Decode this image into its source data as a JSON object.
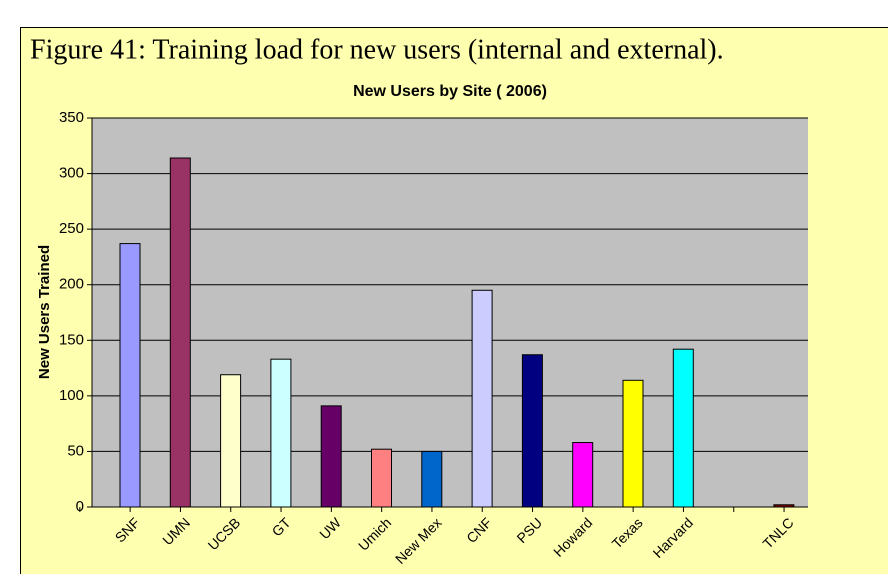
{
  "figure_caption": "Figure 41: Training load for new users (internal and external).",
  "chart_data": {
    "type": "bar",
    "title": "New Users by Site ( 2006)",
    "y_label": "New Users Trained",
    "categories": [
      "SNF",
      "UMN",
      "UCSB",
      "GT",
      "UW",
      "Umich",
      "New Mex",
      "CNF",
      "PSU",
      "Howard",
      "Texas",
      "Harvard",
      null,
      "TNLC"
    ],
    "values": [
      237,
      314,
      119,
      133,
      91,
      52,
      50,
      195,
      137,
      58,
      114,
      142,
      null,
      2
    ],
    "colors": [
      "#9999ff",
      "#993366",
      "#ffffcc",
      "#ccffff",
      "#660066",
      "#ff8080",
      "#0066cc",
      "#ccccff",
      "#000080",
      "#ff00ff",
      "#ffff00",
      "#00ffff",
      null,
      "#800000"
    ],
    "ylim": [
      0,
      350
    ],
    "yticks": [
      0,
      50,
      100,
      150,
      200,
      250,
      300,
      350
    ],
    "grid": true
  }
}
